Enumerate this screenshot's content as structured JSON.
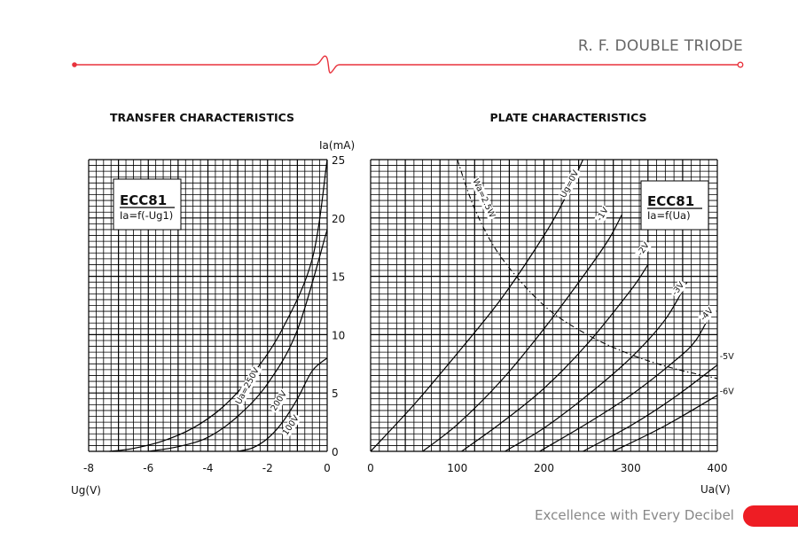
{
  "header": {
    "title": "R. F. DOUBLE TRIODE"
  },
  "footer": {
    "tagline": "Excellence with Every Decibel"
  },
  "colors": {
    "accent": "#e8323c",
    "footer_tab": "#ee1d24",
    "gray_text": "#666666"
  },
  "chart_data": [
    {
      "type": "line",
      "title": "TRANSFER CHARACTERISTICS",
      "xlabel": "Ug(V)",
      "ylabel": "Ia(mA)",
      "xlim": [
        -8,
        0
      ],
      "ylim": [
        0,
        25
      ],
      "x_ticks": [
        "-8",
        "-6",
        "-4",
        "-2",
        "0"
      ],
      "y_ticks": [
        "0",
        "5",
        "10",
        "15",
        "20",
        "25"
      ],
      "grid": true,
      "box": {
        "title": "ECC81",
        "subtitle": "Ia=f(-Ug1)",
        "position": "top-left"
      },
      "series": [
        {
          "name": "Ua=250V",
          "points": [
            [
              -7.3,
              0
            ],
            [
              -6.5,
              0.25
            ],
            [
              -5.5,
              0.9
            ],
            [
              -4.5,
              2.0
            ],
            [
              -3.5,
              3.8
            ],
            [
              -2.5,
              6.6
            ],
            [
              -1.5,
              10.5
            ],
            [
              -0.5,
              16.5
            ],
            [
              0,
              25
            ]
          ]
        },
        {
          "name": "200V",
          "points": [
            [
              -6.0,
              0
            ],
            [
              -5.0,
              0.4
            ],
            [
              -4.0,
              1.2
            ],
            [
              -3.0,
              3.0
            ],
            [
              -2.0,
              5.8
            ],
            [
              -1.0,
              10.4
            ],
            [
              0,
              19
            ]
          ]
        },
        {
          "name": "100V",
          "points": [
            [
              -3.0,
              0
            ],
            [
              -2.5,
              0.3
            ],
            [
              -2.0,
              1.1
            ],
            [
              -1.5,
              2.5
            ],
            [
              -1.0,
              4.5
            ],
            [
              -0.5,
              6.9
            ],
            [
              0,
              8
            ]
          ]
        }
      ]
    },
    {
      "type": "line",
      "title": "PLATE CHARACTERISTICS",
      "xlabel": "Ua(V)",
      "ylabel": "",
      "xlim": [
        0,
        400
      ],
      "ylim": [
        0,
        25
      ],
      "x_ticks": [
        "0",
        "100",
        "200",
        "300",
        "400"
      ],
      "grid": true,
      "box": {
        "title": "ECC81",
        "subtitle": "Ia=f(Ua)",
        "position": "top-right"
      },
      "series": [
        {
          "name": "Ug=0V",
          "points": [
            [
              0,
              0
            ],
            [
              50,
              4
            ],
            [
              100,
              8.4
            ],
            [
              150,
              13
            ],
            [
              200,
              18.5
            ],
            [
              225,
              21.8
            ],
            [
              245,
              25
            ]
          ]
        },
        {
          "name": "-1V",
          "points": [
            [
              60,
              0
            ],
            [
              100,
              2.3
            ],
            [
              150,
              6
            ],
            [
              200,
              10.5
            ],
            [
              250,
              15.5
            ],
            [
              275,
              18.2
            ],
            [
              290,
              20.3
            ]
          ]
        },
        {
          "name": "-2V",
          "points": [
            [
              105,
              0
            ],
            [
              150,
              2.4
            ],
            [
              200,
              5.4
            ],
            [
              250,
              9.2
            ],
            [
              300,
              13.8
            ],
            [
              320,
              16
            ]
          ]
        },
        {
          "name": "-3V",
          "points": [
            [
              155,
              0
            ],
            [
              200,
              2
            ],
            [
              250,
              4.8
            ],
            [
              300,
              8
            ],
            [
              340,
              11.3
            ],
            [
              365,
              14.5
            ]
          ]
        },
        {
          "name": "-4V",
          "points": [
            [
              195,
              0
            ],
            [
              250,
              2.4
            ],
            [
              300,
              4.8
            ],
            [
              350,
              7.7
            ],
            [
              375,
              9.5
            ],
            [
              395,
              12.2
            ]
          ]
        },
        {
          "name": "-5V",
          "points": [
            [
              245,
              0
            ],
            [
              300,
              2.2
            ],
            [
              350,
              4.6
            ],
            [
              400,
              7.4
            ]
          ]
        },
        {
          "name": "-6V",
          "points": [
            [
              280,
              0
            ],
            [
              340,
              2.2
            ],
            [
              400,
              4.8
            ]
          ]
        },
        {
          "name": "Wa=2.5W",
          "points": [
            [
              100,
              25
            ],
            [
              120,
              20.8
            ],
            [
              150,
              16.7
            ],
            [
              200,
              12.5
            ],
            [
              250,
              10
            ],
            [
              300,
              8.3
            ],
            [
              350,
              7.1
            ],
            [
              400,
              6.25
            ]
          ]
        }
      ]
    }
  ]
}
